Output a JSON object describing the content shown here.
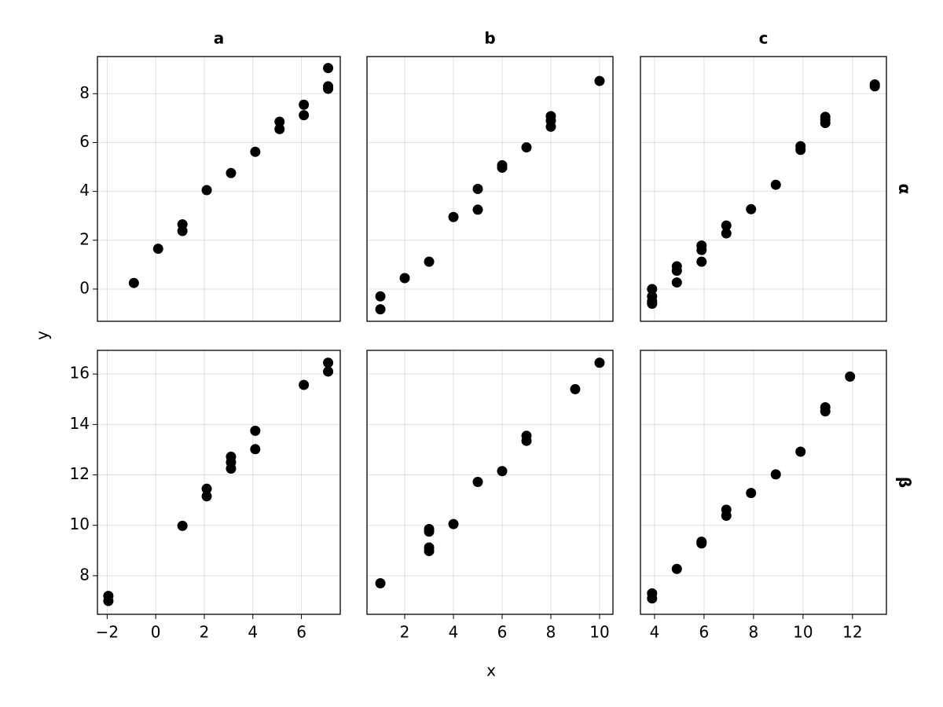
{
  "chart_data": {
    "type": "scatter",
    "xlabel": "x",
    "ylabel": "y",
    "color": "#000000",
    "grid": true,
    "columns": [
      {
        "label": "a",
        "xlim": [
          -2.4,
          7.6
        ],
        "xticks": [
          {
            "value": -2,
            "label": "−2"
          },
          0,
          2,
          4,
          6
        ]
      },
      {
        "label": "b",
        "xlim": [
          0.45,
          10.55
        ],
        "xticks": [
          2,
          4,
          6,
          8,
          10
        ]
      },
      {
        "label": "c",
        "xlim": [
          3.43,
          13.37
        ],
        "xticks": [
          4,
          6,
          8,
          10,
          12
        ]
      }
    ],
    "rows": [
      {
        "label": "α",
        "ylim": [
          -1.32,
          9.52
        ],
        "yticks": [
          0,
          2,
          4,
          6,
          8
        ],
        "panels": [
          {
            "x": [
              -0.9,
              0.1,
              1.1,
              1.1,
              2.1,
              3.1,
              4.1,
              5.1,
              5.1,
              6.1,
              6.1,
              7.1,
              7.1,
              7.1
            ],
            "y": [
              0.25,
              1.65,
              2.65,
              2.38,
              4.05,
              4.75,
              5.62,
              6.85,
              6.55,
              7.55,
              7.12,
              9.05,
              8.3,
              8.2
            ]
          },
          {
            "x": [
              1,
              1,
              2,
              3,
              4,
              5,
              5,
              6,
              6,
              7,
              8,
              8,
              8,
              10
            ],
            "y": [
              -0.3,
              -0.83,
              0.45,
              1.12,
              2.95,
              4.1,
              3.25,
              5.07,
              4.97,
              5.8,
              7.08,
              6.9,
              6.65,
              8.52
            ]
          },
          {
            "x": [
              3.9,
              3.9,
              3.9,
              3.9,
              4.9,
              4.9,
              4.9,
              5.9,
              5.9,
              5.9,
              6.9,
              6.9,
              7.9,
              8.9,
              9.9,
              9.9,
              10.9,
              10.9,
              10.9,
              12.9,
              12.9
            ],
            "y": [
              0.0,
              -0.3,
              -0.5,
              -0.6,
              0.93,
              0.75,
              0.27,
              1.78,
              1.6,
              1.12,
              2.6,
              2.28,
              3.27,
              4.27,
              5.85,
              5.7,
              7.05,
              6.93,
              6.8,
              8.38,
              8.3
            ]
          }
        ]
      },
      {
        "label": "β",
        "ylim": [
          6.47,
          16.94
        ],
        "yticks": [
          8,
          10,
          12,
          14,
          16
        ],
        "panels": [
          {
            "x": [
              -1.95,
              -1.95,
              1.1,
              2.1,
              2.1,
              3.1,
              3.1,
              3.1,
              4.1,
              4.1,
              6.1,
              7.1,
              7.1
            ],
            "y": [
              7.2,
              7.0,
              9.98,
              11.45,
              11.15,
              12.72,
              12.5,
              12.25,
              13.75,
              13.02,
              15.57,
              16.45,
              16.1
            ]
          },
          {
            "x": [
              1,
              3,
              3,
              3,
              3,
              4,
              5,
              6,
              7,
              7,
              9,
              10
            ],
            "y": [
              7.7,
              9.85,
              9.75,
              9.12,
              8.98,
              10.05,
              11.72,
              12.15,
              13.55,
              13.35,
              15.4,
              16.45
            ]
          },
          {
            "x": [
              3.9,
              3.9,
              4.9,
              5.9,
              5.9,
              6.9,
              6.9,
              7.9,
              8.9,
              9.9,
              10.9,
              10.9,
              11.9
            ],
            "y": [
              7.3,
              7.1,
              8.27,
              9.35,
              9.28,
              10.62,
              10.38,
              11.28,
              12.02,
              12.92,
              14.68,
              14.52,
              15.9
            ]
          }
        ]
      }
    ]
  }
}
